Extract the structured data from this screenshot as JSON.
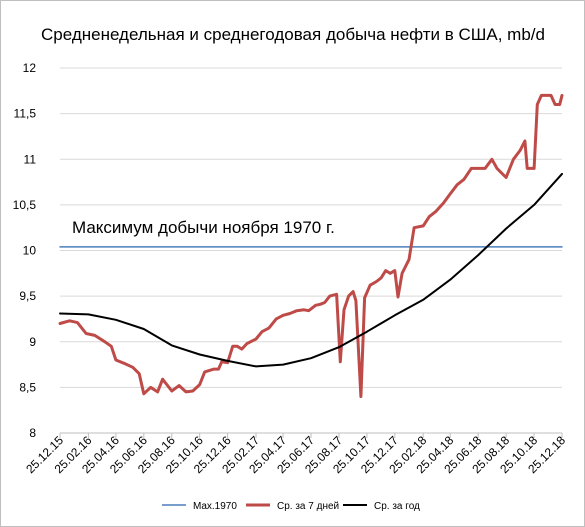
{
  "chart_data": {
    "type": "line",
    "title": "Средненедельная и среднегодовая добыча нефти в США, mb/d",
    "xlabel": "",
    "ylabel": "",
    "ylim": [
      8,
      12
    ],
    "yticks": [
      8,
      8.5,
      9,
      9.5,
      10,
      10.5,
      11,
      11.5,
      12
    ],
    "ytick_labels": [
      "8",
      "8,5",
      "9",
      "9,5",
      "10",
      "10,5",
      "11",
      "11,5",
      "12"
    ],
    "grid": "horizontal",
    "legend_position": "bottom",
    "x_range": [
      "25.12.15",
      "25.12.18"
    ],
    "x_ticks": [
      "25.12.15",
      "25.02.16",
      "25.04.16",
      "25.06.16",
      "25.08.16",
      "25.10.16",
      "25.12.16",
      "25.02.17",
      "25.04.17",
      "25.06.17",
      "25.08.17",
      "25.10.17",
      "25.12.17",
      "25.02.18",
      "25.04.18",
      "25.06.18",
      "25.08.18",
      "25.10.18",
      "25.12.18"
    ],
    "annotation": "Максимум добычи ноября 1970 г.",
    "series": [
      {
        "name": "Max.1970",
        "color": "#4a7ebb",
        "points": [
          [
            "25.12.15",
            10.04
          ],
          [
            "25.12.18",
            10.04
          ]
        ]
      },
      {
        "name": "Ср. за 7 дней",
        "color": "#be4b48",
        "points": [
          [
            "25.12.15",
            9.2
          ],
          [
            "15.01.16",
            9.23
          ],
          [
            "01.02.16",
            9.21
          ],
          [
            "20.02.16",
            9.09
          ],
          [
            "10.03.16",
            9.07
          ],
          [
            "01.04.16",
            9.0
          ],
          [
            "15.04.16",
            8.95
          ],
          [
            "25.04.16",
            8.8
          ],
          [
            "15.05.16",
            8.76
          ],
          [
            "01.06.16",
            8.72
          ],
          [
            "15.06.16",
            8.65
          ],
          [
            "25.06.16",
            8.43
          ],
          [
            "10.07.16",
            8.5
          ],
          [
            "25.07.16",
            8.45
          ],
          [
            "05.08.16",
            8.59
          ],
          [
            "25.08.16",
            8.46
          ],
          [
            "10.09.16",
            8.52
          ],
          [
            "25.09.16",
            8.45
          ],
          [
            "10.10.16",
            8.46
          ],
          [
            "25.10.16",
            8.53
          ],
          [
            "05.11.16",
            8.67
          ],
          [
            "25.11.16",
            8.7
          ],
          [
            "05.12.16",
            8.7
          ],
          [
            "12.12.16",
            8.78
          ],
          [
            "25.12.16",
            8.77
          ],
          [
            "05.01.17",
            8.95
          ],
          [
            "15.01.17",
            8.95
          ],
          [
            "25.01.17",
            8.92
          ],
          [
            "05.02.17",
            8.98
          ],
          [
            "25.02.17",
            9.03
          ],
          [
            "10.03.17",
            9.11
          ],
          [
            "25.03.17",
            9.15
          ],
          [
            "10.04.17",
            9.25
          ],
          [
            "25.04.17",
            9.29
          ],
          [
            "10.05.17",
            9.31
          ],
          [
            "25.05.17",
            9.34
          ],
          [
            "10.06.17",
            9.35
          ],
          [
            "20.06.17",
            9.34
          ],
          [
            "05.07.17",
            9.4
          ],
          [
            "15.07.17",
            9.41
          ],
          [
            "25.07.17",
            9.43
          ],
          [
            "05.08.17",
            9.5
          ],
          [
            "20.08.17",
            9.52
          ],
          [
            "28.08.17",
            8.78
          ],
          [
            "05.09.17",
            9.35
          ],
          [
            "15.09.17",
            9.5
          ],
          [
            "25.09.17",
            9.55
          ],
          [
            "01.10.17",
            9.45
          ],
          [
            "12.10.17",
            8.4
          ],
          [
            "20.10.17",
            9.48
          ],
          [
            "01.11.17",
            9.62
          ],
          [
            "15.11.17",
            9.66
          ],
          [
            "25.11.17",
            9.7
          ],
          [
            "05.12.17",
            9.78
          ],
          [
            "15.12.17",
            9.75
          ],
          [
            "25.12.17",
            9.78
          ],
          [
            "01.01.18",
            9.49
          ],
          [
            "10.01.18",
            9.75
          ],
          [
            "25.01.18",
            9.9
          ],
          [
            "05.02.18",
            10.25
          ],
          [
            "25.02.18",
            10.27
          ],
          [
            "10.03.18",
            10.37
          ],
          [
            "25.03.18",
            10.43
          ],
          [
            "10.04.18",
            10.52
          ],
          [
            "25.04.18",
            10.62
          ],
          [
            "10.05.18",
            10.72
          ],
          [
            "25.05.18",
            10.78
          ],
          [
            "10.06.18",
            10.9
          ],
          [
            "25.06.18",
            10.9
          ],
          [
            "10.07.18",
            10.9
          ],
          [
            "25.07.18",
            11.0
          ],
          [
            "05.08.18",
            10.9
          ],
          [
            "25.08.18",
            10.8
          ],
          [
            "10.09.18",
            11.0
          ],
          [
            "25.09.18",
            11.1
          ],
          [
            "05.10.18",
            11.2
          ],
          [
            "10.10.18",
            10.9
          ],
          [
            "25.10.18",
            10.9
          ],
          [
            "01.11.18",
            11.6
          ],
          [
            "10.11.18",
            11.7
          ],
          [
            "01.12.18",
            11.7
          ],
          [
            "10.12.18",
            11.6
          ],
          [
            "20.12.18",
            11.6
          ],
          [
            "25.12.18",
            11.7
          ]
        ]
      },
      {
        "name": "Ср. за год",
        "color": "#000000",
        "points": [
          [
            "25.12.15",
            9.31
          ],
          [
            "25.02.16",
            9.3
          ],
          [
            "25.04.16",
            9.24
          ],
          [
            "25.06.16",
            9.14
          ],
          [
            "25.08.16",
            8.96
          ],
          [
            "25.10.16",
            8.86
          ],
          [
            "25.12.16",
            8.79
          ],
          [
            "25.02.17",
            8.73
          ],
          [
            "25.04.17",
            8.75
          ],
          [
            "25.06.17",
            8.82
          ],
          [
            "25.08.17",
            8.94
          ],
          [
            "25.10.17",
            9.11
          ],
          [
            "25.12.17",
            9.29
          ],
          [
            "25.02.18",
            9.46
          ],
          [
            "25.04.18",
            9.68
          ],
          [
            "25.06.18",
            9.95
          ],
          [
            "25.08.18",
            10.24
          ],
          [
            "25.10.18",
            10.5
          ],
          [
            "25.12.18",
            10.84
          ]
        ]
      }
    ]
  }
}
